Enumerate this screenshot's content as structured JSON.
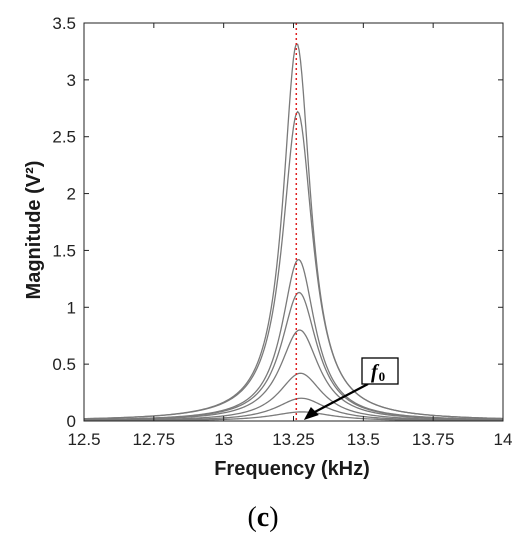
{
  "chart_data": {
    "type": "line",
    "xlabel": "Frequency (kHz)",
    "ylabel": "Magnitude (V²)",
    "xlim": [
      12.5,
      14
    ],
    "ylim": [
      0,
      3.5
    ],
    "xticks": [
      "12.5",
      "12.75",
      "13",
      "13.25",
      "13.5",
      "13.75",
      "14"
    ],
    "yticks": [
      "0",
      "0.5",
      "1",
      "1.5",
      "2",
      "2.5",
      "3",
      "3.5"
    ],
    "grid": false,
    "legend": "none",
    "series_color": "#7a7a7a",
    "series": [
      {
        "peak_x": 13.262,
        "peak_y": 3.32,
        "width": 0.06
      },
      {
        "peak_x": 13.265,
        "peak_y": 2.72,
        "width": 0.066
      },
      {
        "peak_x": 13.268,
        "peak_y": 1.42,
        "width": 0.072
      },
      {
        "peak_x": 13.27,
        "peak_y": 1.13,
        "width": 0.078
      },
      {
        "peak_x": 13.272,
        "peak_y": 0.8,
        "width": 0.085
      },
      {
        "peak_x": 13.275,
        "peak_y": 0.42,
        "width": 0.095
      },
      {
        "peak_x": 13.278,
        "peak_y": 0.2,
        "width": 0.11
      },
      {
        "peak_x": 13.28,
        "peak_y": 0.08,
        "width": 0.13
      }
    ],
    "reference_line": {
      "x": 13.26,
      "color": "#e02020"
    },
    "annotation": {
      "label": "f",
      "subscript": "0",
      "target_x": 13.28,
      "target_y": 0.0
    }
  },
  "caption": {
    "open": "(",
    "letter": "c",
    "close": ")"
  }
}
